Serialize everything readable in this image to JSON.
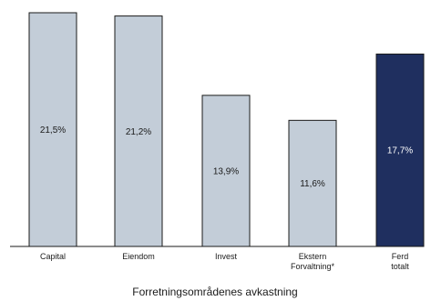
{
  "chart_data": {
    "type": "bar",
    "title": "Forretningsområdenes avkastning",
    "categories": [
      [
        "Capital"
      ],
      [
        "Eiendom"
      ],
      [
        "Invest"
      ],
      [
        "Ekstern",
        "Forvaltning*"
      ],
      [
        "Ferd",
        "totalt"
      ]
    ],
    "values": [
      21.5,
      21.2,
      13.9,
      11.6,
      17.7
    ],
    "value_labels": [
      "21,5%",
      "21,2%",
      "13,9%",
      "11,6%",
      "17,7%"
    ],
    "ylim": [
      0,
      21.5
    ],
    "colors": [
      "#c3cdd8",
      "#c3cdd8",
      "#c3cdd8",
      "#c3cdd8",
      "#1f2f5f"
    ],
    "label_colors": [
      "#1a1a1a",
      "#1a1a1a",
      "#1a1a1a",
      "#1a1a1a",
      "#ffffff"
    ],
    "grid": false,
    "xlabel": "",
    "ylabel": ""
  }
}
